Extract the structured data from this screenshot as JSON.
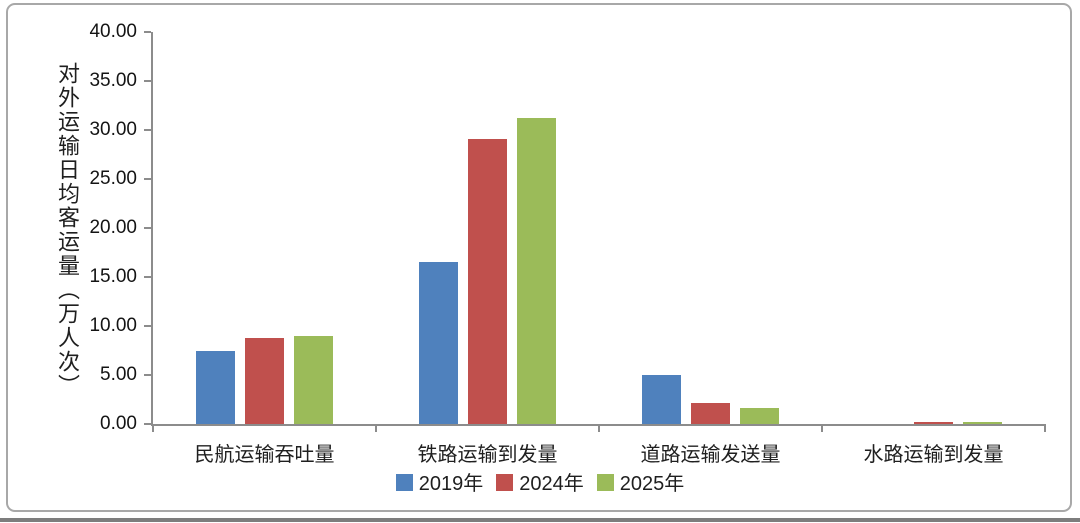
{
  "chart_data": {
    "type": "bar",
    "categories": [
      "民航运输吞吐量",
      "铁路运输到发量",
      "道路运输发送量",
      "水路运输到发量"
    ],
    "series": [
      {
        "name": "2019年",
        "color": "#4F81BD",
        "values": [
          7.5,
          16.5,
          5.0,
          0.0
        ]
      },
      {
        "name": "2024年",
        "color": "#C0504D",
        "values": [
          8.8,
          29.1,
          2.1,
          0.2
        ]
      },
      {
        "name": "2025年",
        "color": "#9BBB59",
        "values": [
          9.0,
          31.2,
          1.6,
          0.2
        ]
      }
    ],
    "title": "",
    "xlabel": "",
    "ylabel": "对外运输日均客运量（万人次）",
    "ylim": [
      0,
      40
    ],
    "ytick_step": 5,
    "ytick_decimals": 2,
    "ytick_labels": [
      "0.00",
      "5.00",
      "10.00",
      "15.00",
      "20.00",
      "25.00",
      "30.00",
      "35.00",
      "40.00"
    ],
    "grid": false,
    "legend_position": "bottom"
  },
  "colors": {
    "axis": "#8C8C8C",
    "text": "#1F1F1F",
    "frame_border": "#A8A8A8",
    "bottom_rule": "#7D7D7D",
    "background": "#FFFFFF"
  }
}
